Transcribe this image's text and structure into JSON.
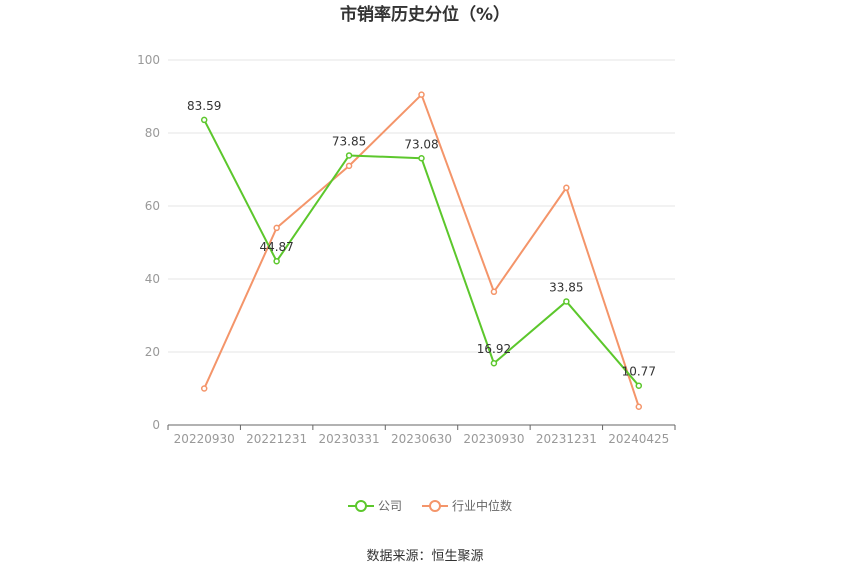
{
  "chart_data": {
    "type": "line",
    "title": "市销率历史分位（%）",
    "categories": [
      "20220930",
      "20221231",
      "20230331",
      "20230630",
      "20230930",
      "20231231",
      "20240425"
    ],
    "ylim": [
      0,
      100
    ],
    "yticks": [
      "0",
      "20",
      "40",
      "60",
      "80",
      "100"
    ],
    "grid": true,
    "legend_position": "bottom",
    "series": [
      {
        "name": "公司",
        "color": "#5cc72c",
        "values": [
          83.59,
          44.87,
          73.85,
          73.08,
          16.92,
          33.85,
          10.77
        ],
        "labels": [
          "83.59",
          "44.87",
          "73.85",
          "73.08",
          "16.92",
          "33.85",
          "10.77"
        ]
      },
      {
        "name": "行业中位数",
        "color": "#f4956a",
        "values": [
          10,
          54,
          71,
          90.5,
          36.5,
          65,
          5
        ]
      }
    ]
  },
  "source_text": "数据来源：恒生聚源"
}
